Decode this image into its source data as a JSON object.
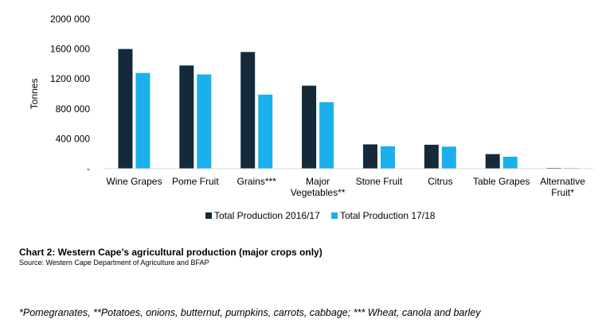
{
  "chart_data": {
    "type": "bar",
    "ylabel": "Tonnes",
    "ylim": [
      0,
      2000000
    ],
    "yticks": [
      0,
      400000,
      800000,
      1200000,
      1600000,
      2000000
    ],
    "ytick_labels": [
      "-",
      "400 000",
      "800 000",
      "1200 000",
      "1600 000",
      "2000 000"
    ],
    "categories": [
      [
        "Wine Grapes"
      ],
      [
        "Pome Fruit"
      ],
      [
        "Grains***"
      ],
      [
        "Major",
        "Vegetables**"
      ],
      [
        "Stone Fruit"
      ],
      [
        "Citrus"
      ],
      [
        "Table Grapes"
      ],
      [
        "Alternative",
        "Fruit*"
      ]
    ],
    "series": [
      {
        "name": "Total Production 2016/17",
        "color": "#142a3b",
        "values": [
          1600000,
          1380000,
          1560000,
          1110000,
          325000,
          320000,
          195000,
          10000
        ]
      },
      {
        "name": "Total Production 17/18",
        "color": "#1bb0ec",
        "values": [
          1280000,
          1260000,
          990000,
          890000,
          300000,
          295000,
          160000,
          8000
        ]
      }
    ],
    "legend_position": "bottom"
  },
  "caption": {
    "title": "Chart 2: Western Cape's agricultural production (major crops only)",
    "source": "Source: Western Cape Department of Agriculture and BFAP"
  },
  "footnote": "*Pomegranates, **Potatoes, onions, butternut, pumpkins, carrots, cabbage; *** Wheat, canola and barley"
}
